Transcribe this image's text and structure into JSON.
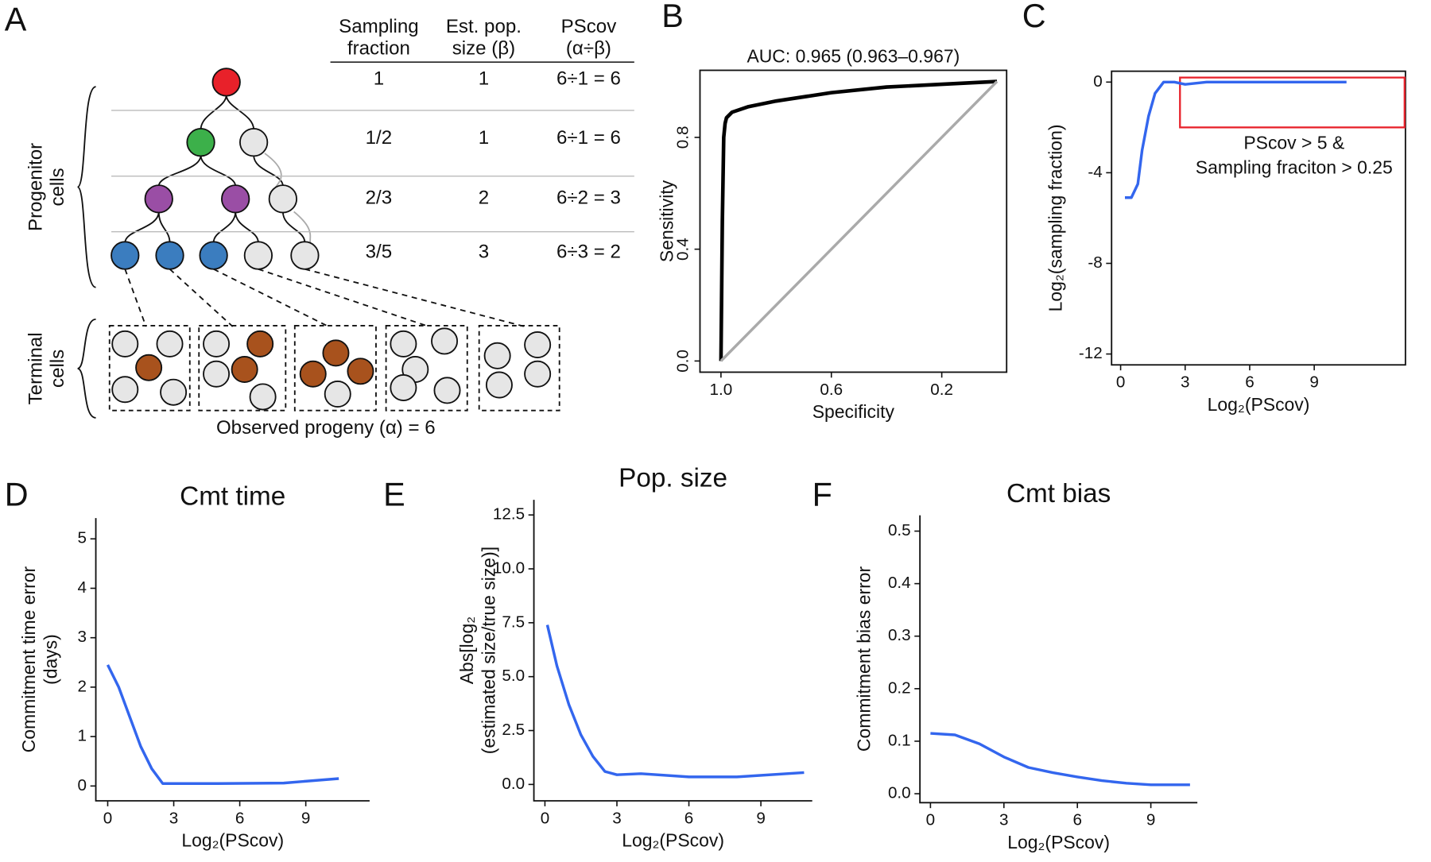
{
  "panel_a": {
    "label": "A",
    "header": [
      [
        "Sampling",
        "fraction"
      ],
      [
        "Est. pop.",
        "size (β)"
      ],
      [
        "PScov",
        "(α÷β)"
      ]
    ],
    "rows": [
      [
        "1",
        "1",
        "6÷1 = 6"
      ],
      [
        "1/2",
        "1",
        "6÷1 = 6"
      ],
      [
        "2/3",
        "2",
        "6÷2 = 3"
      ],
      [
        "3/5",
        "3",
        "6÷3 = 2"
      ]
    ],
    "groups": [
      [
        "Progenitor",
        "cells"
      ],
      [
        "Terminal",
        "cells"
      ]
    ],
    "caption": "Observed progeny (α) = 6"
  },
  "chart_data": [
    {
      "type": "line",
      "panel_label": "B",
      "title": "AUC: 0.965 (0.963–0.967)",
      "x_label": "Specificity",
      "y_label": "Sensitivity",
      "xlim": [
        1.076,
        -0.035
      ],
      "ylim": [
        -0.04,
        1.04
      ],
      "xticks": [
        {
          "value": 1,
          "label": "1.0"
        },
        {
          "value": 0.6,
          "label": "0.6"
        },
        {
          "value": 0.2,
          "label": "0.2"
        }
      ],
      "yticks": [
        {
          "value": 0,
          "label": "0.0"
        },
        {
          "value": 0.4,
          "label": "0.4"
        },
        {
          "value": 0.8,
          "label": "0.8"
        }
      ],
      "series": [
        {
          "color": "#000000",
          "x": [
            1,
            0.995,
            0.99,
            0.985,
            0.98,
            0.96,
            0.9,
            0.8,
            0.6,
            0.4,
            0.2,
            0
          ],
          "values": [
            0,
            0.5,
            0.8,
            0.85,
            0.87,
            0.89,
            0.91,
            0.93,
            0.96,
            0.98,
            0.99,
            1.0
          ]
        },
        {
          "color": "#aaaaaa",
          "x": [
            1,
            0
          ],
          "values": [
            0,
            1
          ]
        }
      ]
    },
    {
      "type": "line",
      "panel_label": "C",
      "x_label": "Log₂(PScov)",
      "y_label": "Log₂(sampling fraction)",
      "xlim": [
        -0.42,
        13.24
      ],
      "ylim": [
        -12.48,
        0.48
      ],
      "xticks": [
        0,
        3,
        6,
        9
      ],
      "yticks": [
        0,
        -4,
        -8,
        -12
      ],
      "annotation": {
        "lines": [
          "PScov > 5 &",
          "Sampling fraciton > 0.25"
        ],
        "color": "#e8174f",
        "xlim": [
          2.76,
          13.2
        ],
        "ylim": [
          -2,
          0.2
        ]
      },
      "series": [
        {
          "color": "#3366ee",
          "x": [
            0.2,
            0.5,
            0.8,
            1.0,
            1.3,
            1.6,
            2.0,
            2.5,
            3,
            4,
            6,
            8,
            10.5
          ],
          "values": [
            -5.1,
            -5.1,
            -4.5,
            -3,
            -1.5,
            -0.5,
            0,
            0,
            -0.1,
            0,
            0,
            0,
            0
          ]
        }
      ]
    },
    {
      "type": "line",
      "panel_label": "D",
      "title": "Cmt time",
      "x_label": "Log₂(PScov)",
      "y_label": [
        "Commitment time error",
        "(days)"
      ],
      "xlim": [
        -0.54,
        11.9
      ],
      "ylim": [
        -0.3,
        5.42
      ],
      "xticks": [
        0,
        3,
        6,
        9
      ],
      "yticks": [
        0,
        1,
        2,
        3,
        4,
        5
      ],
      "series": [
        {
          "color": "#3366ee",
          "x": [
            0,
            0.5,
            1,
            1.5,
            2,
            2.5,
            3,
            5,
            8,
            10.5
          ],
          "values": [
            2.45,
            2.0,
            1.4,
            0.8,
            0.35,
            0.05,
            0.05,
            0.05,
            0.06,
            0.15
          ]
        }
      ]
    },
    {
      "type": "line",
      "panel_label": "E",
      "title": "Pop. size",
      "x_label": "Log₂(PScov)",
      "y_label": [
        "Abs[log₂",
        "(estimated size/true size)]"
      ],
      "xlim": [
        -0.46,
        11.14
      ],
      "ylim": [
        -0.76,
        13.2
      ],
      "xticks": [
        0,
        3,
        6,
        9
      ],
      "yticks": [
        {
          "value": 0,
          "label": "0.0"
        },
        2.5,
        {
          "value": 5,
          "label": "5.0"
        },
        7.5,
        {
          "value": 10,
          "label": "10.0"
        },
        12.5
      ],
      "series": [
        {
          "color": "#3366ee",
          "x": [
            0.1,
            0.5,
            1,
            1.5,
            2,
            2.5,
            3,
            4,
            6,
            8,
            10.8
          ],
          "values": [
            7.4,
            5.5,
            3.7,
            2.3,
            1.3,
            0.6,
            0.45,
            0.5,
            0.35,
            0.35,
            0.55
          ]
        }
      ]
    },
    {
      "type": "line",
      "panel_label": "F",
      "title": "Cmt bias",
      "x_label": "Log₂(PScov)",
      "y_label": "Commitment bias error",
      "xlim": [
        -0.43,
        10.9
      ],
      "ylim": [
        -0.017,
        0.53
      ],
      "xticks": [
        0,
        3,
        6,
        9
      ],
      "yticks": [
        {
          "value": 0,
          "label": "0.0"
        },
        0.1,
        0.2,
        0.3,
        0.4,
        0.5
      ],
      "series": [
        {
          "color": "#3366ee",
          "x": [
            0,
            1,
            2,
            3,
            4,
            5,
            6,
            7,
            8,
            9,
            10.6
          ],
          "values": [
            0.115,
            0.112,
            0.095,
            0.07,
            0.05,
            0.04,
            0.032,
            0.025,
            0.02,
            0.017,
            0.017
          ]
        }
      ]
    }
  ]
}
